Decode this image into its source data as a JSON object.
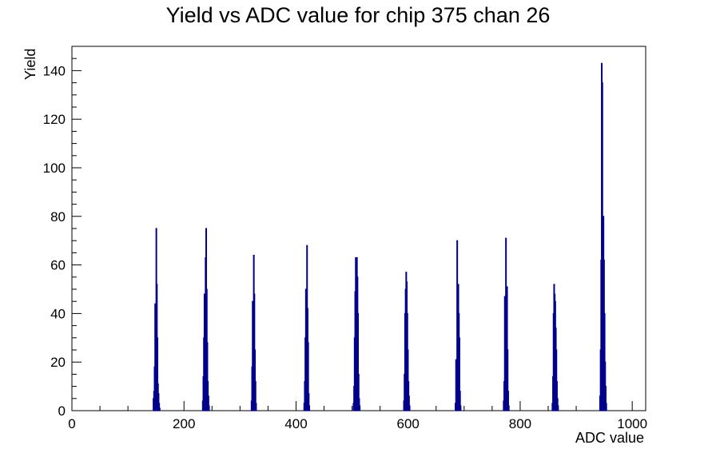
{
  "chart_data": {
    "type": "histogram",
    "title": "Yield vs ADC value for chip 375 chan 26",
    "xlabel": "ADC value",
    "ylabel": "Yield",
    "xlim": [
      0,
      1024
    ],
    "ylim": [
      0,
      150
    ],
    "xticks": [
      0,
      200,
      400,
      600,
      800,
      1000
    ],
    "yticks": [
      0,
      20,
      40,
      60,
      80,
      100,
      120,
      140
    ],
    "grid": false,
    "legend": "none",
    "line_color": "#00008b",
    "bins": [
      [
        145,
        5
      ],
      [
        146,
        8
      ],
      [
        147,
        18
      ],
      [
        148,
        44
      ],
      [
        149,
        24
      ],
      [
        150,
        75
      ],
      [
        151,
        52
      ],
      [
        152,
        30
      ],
      [
        153,
        11
      ],
      [
        154,
        7
      ],
      [
        155,
        3
      ],
      [
        156,
        1
      ],
      [
        233,
        4
      ],
      [
        234,
        14
      ],
      [
        235,
        30
      ],
      [
        236,
        48
      ],
      [
        237,
        35
      ],
      [
        238,
        63
      ],
      [
        239,
        75
      ],
      [
        240,
        50
      ],
      [
        241,
        28
      ],
      [
        242,
        12
      ],
      [
        243,
        6
      ],
      [
        244,
        2
      ],
      [
        320,
        4
      ],
      [
        321,
        18
      ],
      [
        322,
        45
      ],
      [
        323,
        30
      ],
      [
        324,
        64
      ],
      [
        325,
        48
      ],
      [
        326,
        25
      ],
      [
        327,
        12
      ],
      [
        328,
        3
      ],
      [
        414,
        3
      ],
      [
        415,
        12
      ],
      [
        416,
        30
      ],
      [
        417,
        50
      ],
      [
        418,
        28
      ],
      [
        419,
        68
      ],
      [
        420,
        42
      ],
      [
        421,
        28
      ],
      [
        422,
        7
      ],
      [
        423,
        2
      ],
      [
        502,
        3
      ],
      [
        503,
        10
      ],
      [
        504,
        30
      ],
      [
        505,
        49
      ],
      [
        506,
        63
      ],
      [
        507,
        63
      ],
      [
        508,
        63
      ],
      [
        509,
        55
      ],
      [
        510,
        40
      ],
      [
        511,
        15
      ],
      [
        512,
        5
      ],
      [
        513,
        2
      ],
      [
        592,
        4
      ],
      [
        593,
        15
      ],
      [
        594,
        40
      ],
      [
        595,
        50
      ],
      [
        596,
        57
      ],
      [
        597,
        53
      ],
      [
        598,
        40
      ],
      [
        599,
        25
      ],
      [
        600,
        12
      ],
      [
        601,
        6
      ],
      [
        602,
        2
      ],
      [
        684,
        3
      ],
      [
        685,
        21
      ],
      [
        686,
        20
      ],
      [
        687,
        70
      ],
      [
        688,
        50
      ],
      [
        689,
        52
      ],
      [
        690,
        40
      ],
      [
        691,
        30
      ],
      [
        692,
        8
      ],
      [
        693,
        2
      ],
      [
        770,
        4
      ],
      [
        771,
        12
      ],
      [
        772,
        47
      ],
      [
        773,
        40
      ],
      [
        774,
        71
      ],
      [
        775,
        48
      ],
      [
        776,
        51
      ],
      [
        777,
        25
      ],
      [
        778,
        8
      ],
      [
        779,
        2
      ],
      [
        857,
        3
      ],
      [
        858,
        14
      ],
      [
        859,
        40
      ],
      [
        860,
        52
      ],
      [
        861,
        48
      ],
      [
        862,
        45
      ],
      [
        863,
        34
      ],
      [
        864,
        25
      ],
      [
        865,
        12
      ],
      [
        866,
        5
      ],
      [
        867,
        2
      ],
      [
        942,
        6
      ],
      [
        943,
        25
      ],
      [
        944,
        62
      ],
      [
        945,
        143
      ],
      [
        946,
        135
      ],
      [
        947,
        60
      ],
      [
        948,
        80
      ],
      [
        949,
        62
      ],
      [
        950,
        40
      ],
      [
        951,
        20
      ],
      [
        952,
        10
      ],
      [
        953,
        3
      ]
    ]
  }
}
